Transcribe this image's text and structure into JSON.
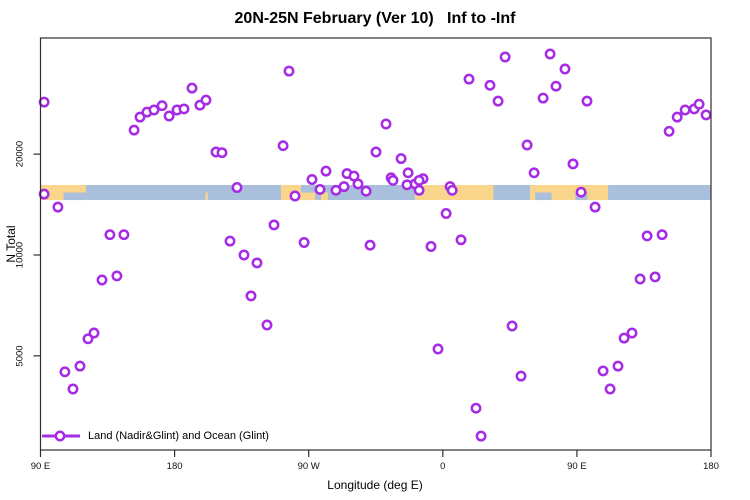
{
  "title": "20N-25N February (Ver 10)   Inf to -Inf",
  "colors": {
    "marker": "#A62BE6",
    "marker_fill": "#ffffff",
    "land": "#FAD68C",
    "ocean": "#A9BFDB",
    "axis": "#2f2f2f",
    "background": "#ffffff"
  },
  "chart_data": {
    "type": "scatter",
    "title": "20N-25N February (Ver 10)   Inf to -Inf",
    "xlabel": "Longitude (deg E)",
    "ylabel": "N Total",
    "x_axis": {
      "range_deg_east": [
        90,
        540
      ],
      "note_units": "deg E",
      "grid": false
    },
    "y_axis": {
      "scale": "log10",
      "range_approx": [
        2600,
        44000
      ],
      "grid": false
    },
    "x_ticks": [
      {
        "lon": 90,
        "label": "90 E"
      },
      {
        "lon": 180,
        "label": "180"
      },
      {
        "lon": 270,
        "label": "90 W"
      },
      {
        "lon": 360,
        "label": "0"
      },
      {
        "lon": 450,
        "label": "90 E"
      },
      {
        "lon": 540,
        "label": "180"
      }
    ],
    "y_ticks": [
      {
        "value": 20000,
        "label": "20000"
      },
      {
        "value": 10000,
        "label": "10000"
      },
      {
        "value": 5000,
        "label": "5000"
      }
    ],
    "legend": [
      {
        "label": "Land (Nadir&Glint) and Ocean (Glint)",
        "marker": "open-circle-on-line",
        "color": "#A62BE6"
      }
    ],
    "map_strip": {
      "description": "land/ocean surface-type band for 20N-25N drawn across the plot",
      "n_top": 16180,
      "n_bottom": 14590,
      "segments": [
        {
          "from": 90.0,
          "to": 120.5,
          "type": "land"
        },
        {
          "from": 120.5,
          "to": 251.4,
          "type": "ocean"
        },
        {
          "from": 251.4,
          "to": 264.8,
          "type": "land"
        },
        {
          "from": 264.8,
          "to": 341.4,
          "type": "ocean"
        },
        {
          "from": 341.4,
          "to": 394.0,
          "type": "land"
        },
        {
          "from": 394.0,
          "to": 418.6,
          "type": "ocean"
        },
        {
          "from": 418.6,
          "to": 470.9,
          "type": "land"
        },
        {
          "from": 470.9,
          "to": 540.0,
          "type": "ocean"
        }
      ],
      "bottom_half_details": [
        {
          "from": 105.5,
          "to": 120.5,
          "type": "ocean"
        },
        {
          "from": 200.8,
          "to": 202.3,
          "type": "land"
        },
        {
          "from": 264.8,
          "to": 274.3,
          "type": "land"
        },
        {
          "from": 278.3,
          "to": 282.9,
          "type": "land"
        },
        {
          "from": 422.0,
          "to": 433.0,
          "type": "ocean"
        },
        {
          "from": 449.0,
          "to": 457.0,
          "type": "ocean"
        }
      ]
    },
    "series": [
      {
        "name": "Land (Nadir&Glint) and Ocean (Glint)",
        "marker": "open-circle",
        "color": "#A62BE6",
        "points": [
          [
            92.4,
            28600
          ],
          [
            256.8,
            35400
          ],
          [
            191.7,
            31500
          ],
          [
            197.0,
            28000
          ],
          [
            201.1,
            29000
          ],
          [
            152.8,
            23600
          ],
          [
            156.8,
            25800
          ],
          [
            161.5,
            26700
          ],
          [
            166.2,
            27100
          ],
          [
            171.6,
            27900
          ],
          [
            176.3,
            26000
          ],
          [
            181.6,
            27100
          ],
          [
            186.3,
            27300
          ],
          [
            207.8,
            20300
          ],
          [
            211.8,
            20200
          ],
          [
            252.8,
            21200
          ],
          [
            221.9,
            15900
          ],
          [
            272.2,
            16800
          ],
          [
            277.6,
            15700
          ],
          [
            281.6,
            17800
          ],
          [
            288.3,
            15600
          ],
          [
            293.7,
            16000
          ],
          [
            295.7,
            17500
          ],
          [
            300.4,
            17200
          ],
          [
            303.1,
            16300
          ],
          [
            308.5,
            15500
          ],
          [
            315.2,
            20300
          ],
          [
            260.8,
            15000
          ],
          [
            325.3,
            17000
          ],
          [
            336.0,
            16200
          ],
          [
            341.4,
            16300
          ],
          [
            346.7,
            16900
          ],
          [
            364.9,
            16000
          ],
          [
            401.8,
            39000
          ],
          [
            432.0,
            39800
          ],
          [
            442.0,
            35900
          ],
          [
            377.6,
            33500
          ],
          [
            391.7,
            32100
          ],
          [
            436.0,
            31900
          ],
          [
            397.1,
            28800
          ],
          [
            427.3,
            29400
          ],
          [
            456.8,
            28800
          ],
          [
            321.9,
            24600
          ],
          [
            332.0,
            19400
          ],
          [
            336.7,
            17600
          ],
          [
            326.6,
            16700
          ],
          [
            344.1,
            16700
          ],
          [
            344.1,
            15600
          ],
          [
            366.3,
            15600
          ],
          [
            416.6,
            21300
          ],
          [
            421.3,
            17600
          ],
          [
            447.4,
            18700
          ],
          [
            452.8,
            15400
          ],
          [
            511.9,
            23400
          ],
          [
            517.3,
            25800
          ],
          [
            522.6,
            27100
          ],
          [
            528.7,
            27300
          ],
          [
            532.0,
            28200
          ],
          [
            536.7,
            26200
          ],
          [
            101.7,
            13900
          ],
          [
            136.6,
            11500
          ],
          [
            146.0,
            11500
          ],
          [
            131.3,
            8420
          ],
          [
            141.3,
            8660
          ],
          [
            121.9,
            5620
          ],
          [
            125.9,
            5850
          ],
          [
            217.2,
            11000
          ],
          [
            226.6,
            10000
          ],
          [
            235.3,
            9470
          ],
          [
            246.7,
            12300
          ],
          [
            231.3,
            7550
          ],
          [
            242.0,
            6180
          ],
          [
            266.9,
            10900
          ],
          [
            311.2,
            10700
          ],
          [
            362.2,
            13300
          ],
          [
            372.2,
            11100
          ],
          [
            352.1,
            10600
          ],
          [
            462.2,
            13900
          ],
          [
            497.1,
            11400
          ],
          [
            507.2,
            11500
          ],
          [
            492.4,
            8480
          ],
          [
            502.5,
            8600
          ],
          [
            406.5,
            6140
          ],
          [
            356.8,
            5240
          ],
          [
            481.7,
            5650
          ],
          [
            487.0,
            5850
          ],
          [
            106.4,
            4480
          ],
          [
            116.5,
            4660
          ],
          [
            111.8,
            3980
          ],
          [
            412.5,
            4350
          ],
          [
            382.3,
            3490
          ],
          [
            385.7,
            2880
          ],
          [
            467.6,
            4510
          ],
          [
            477.6,
            4660
          ],
          [
            472.3,
            3980
          ],
          [
            92.4,
            15200
          ]
        ]
      }
    ]
  }
}
